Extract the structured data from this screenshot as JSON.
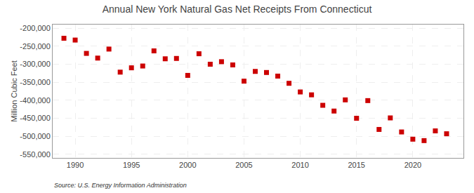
{
  "chart_data": {
    "type": "scatter",
    "title": "Annual New York Natural Gas Net Receipts From Connecticut",
    "ylabel": "Million Cubic Feet",
    "source": "Source: U.S. Energy Information Administration",
    "color": "#cc0000",
    "marker": "square",
    "grid": true,
    "x": [
      1989,
      1990,
      1991,
      1992,
      1993,
      1994,
      1995,
      1996,
      1997,
      1998,
      1999,
      2000,
      2001,
      2002,
      2003,
      2004,
      2005,
      2006,
      2007,
      2008,
      2009,
      2010,
      2011,
      2012,
      2013,
      2014,
      2015,
      2016,
      2017,
      2018,
      2019,
      2020,
      2021,
      2022,
      2023
    ],
    "values": [
      -228000,
      -233000,
      -270000,
      -283000,
      -258000,
      -322000,
      -310000,
      -305000,
      -263000,
      -285000,
      -284000,
      -331000,
      -271000,
      -300000,
      -293000,
      -302000,
      -347000,
      -320000,
      -323000,
      -333000,
      -353000,
      -377000,
      -385000,
      -414000,
      -430000,
      -399000,
      -450000,
      -401000,
      -481000,
      -449000,
      -488000,
      -508000,
      -512000,
      -485000,
      -493000
    ],
    "xlim": [
      1988.0,
      2024.5
    ],
    "ylim": [
      -560000,
      -190000
    ],
    "xticks": [
      1990,
      1995,
      2000,
      2005,
      2010,
      2015,
      2020
    ],
    "yticks": [
      {
        "value": -200000,
        "label": "-200,000"
      },
      {
        "value": -250000,
        "label": "-250,000"
      },
      {
        "value": -300000,
        "label": "-300,000"
      },
      {
        "value": -350000,
        "label": "-350,000"
      },
      {
        "value": -400000,
        "label": "-400,000"
      },
      {
        "value": -450000,
        "label": "-450,000"
      },
      {
        "value": -500000,
        "label": "-500,000"
      },
      {
        "value": -550000,
        "label": "-550,000"
      }
    ]
  }
}
